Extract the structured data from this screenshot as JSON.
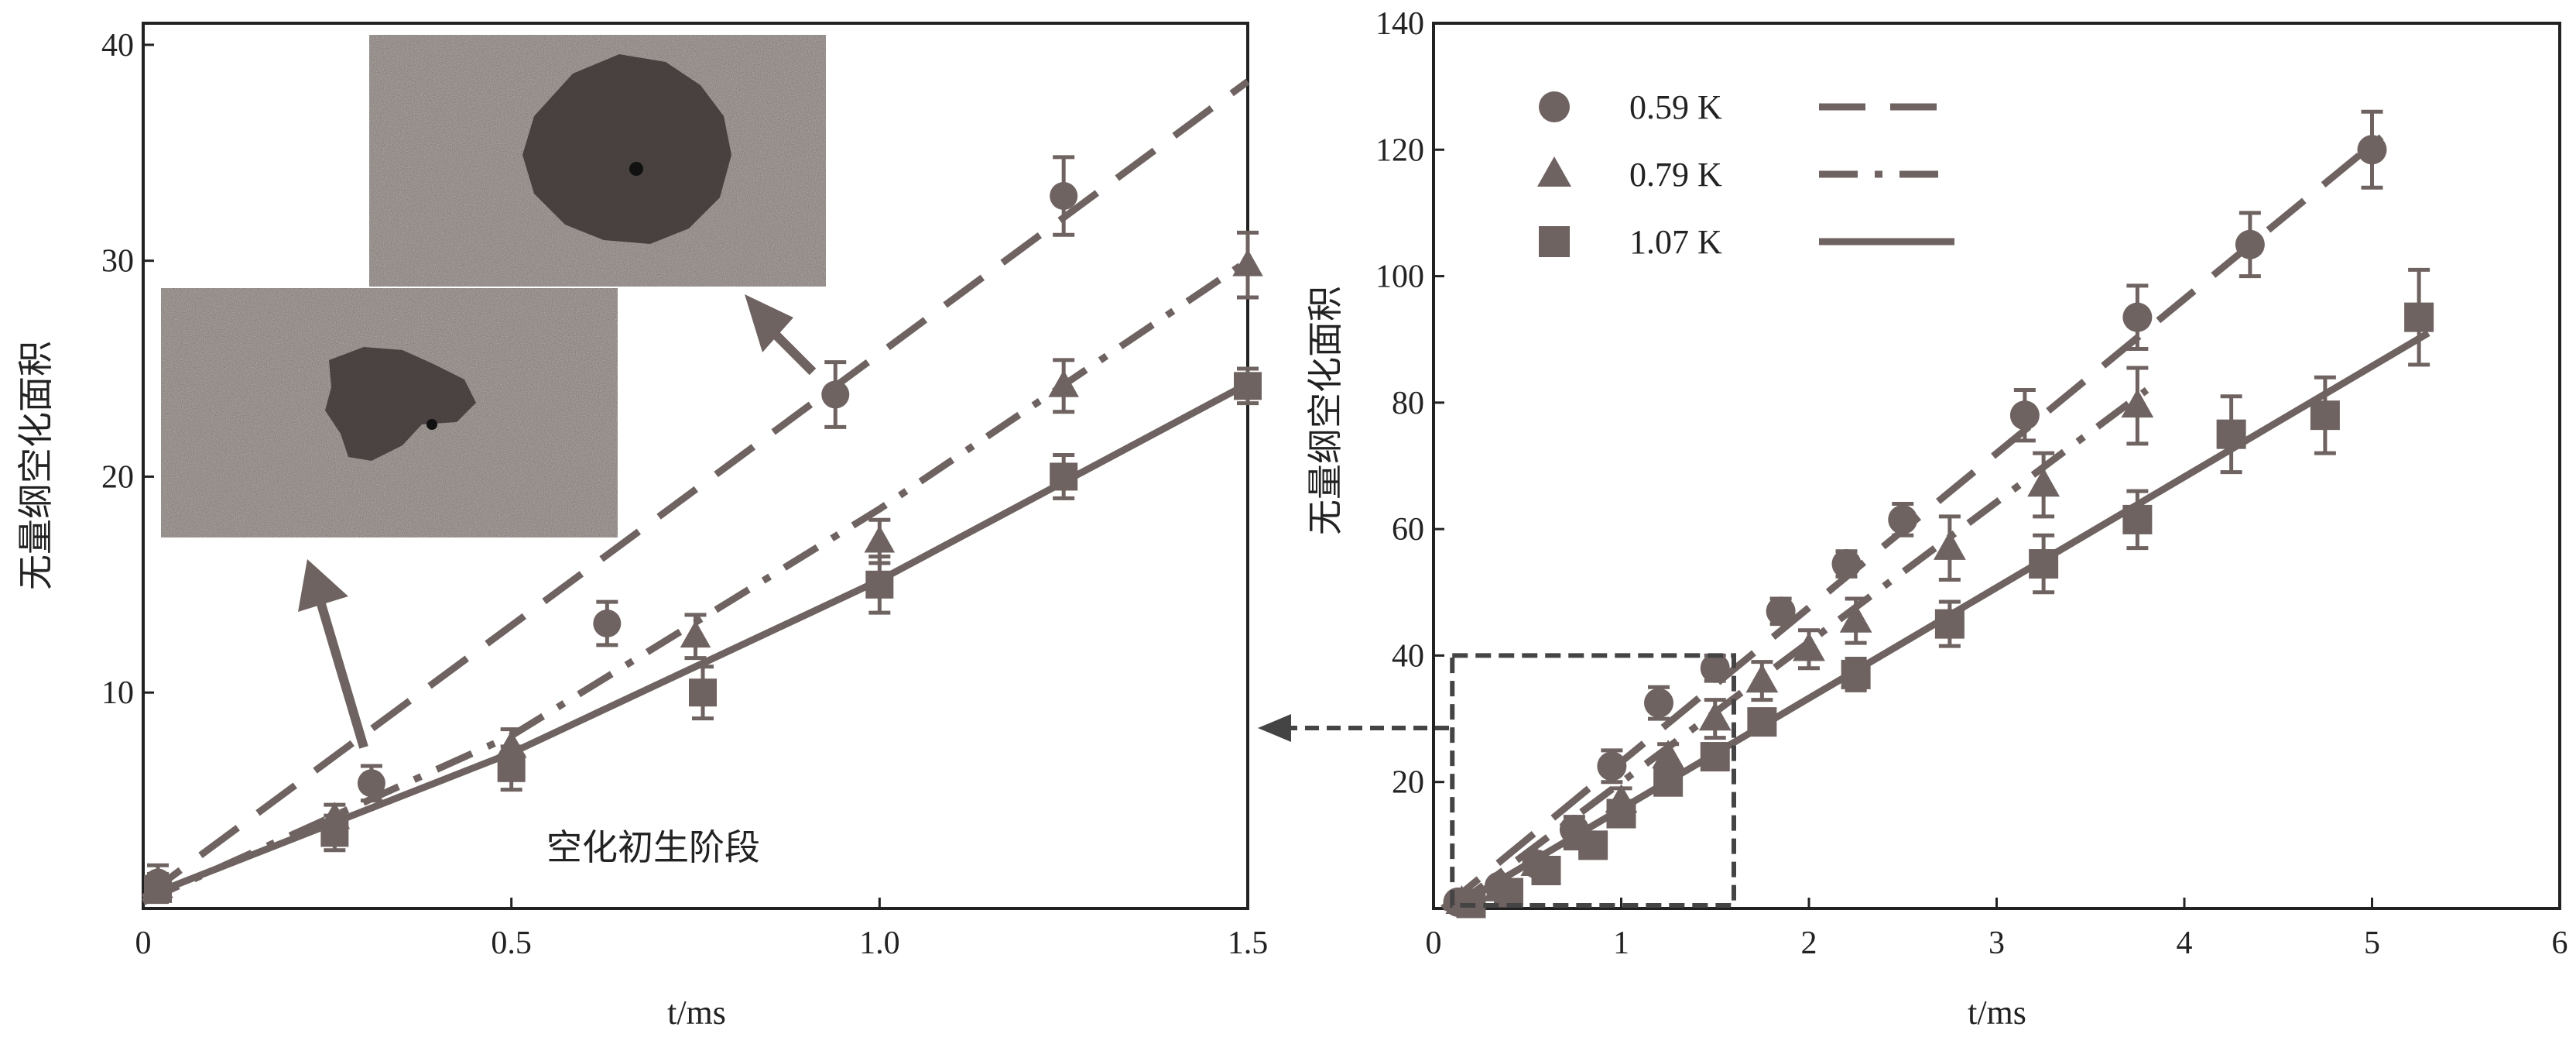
{
  "chart_data": [
    {
      "type": "scatter",
      "panel": "left",
      "title": "",
      "xlabel": "t/ms",
      "ylabel": "无量纲空化面积",
      "xlim": [
        0,
        1.5
      ],
      "ylim": [
        0,
        41
      ],
      "xticks": [
        "0",
        "0.5",
        "1.0",
        "1.5"
      ],
      "yticks": [
        "10",
        "20",
        "30",
        "40"
      ],
      "annotation": "空化初生阶段",
      "series": [
        {
          "name": "0.59 K",
          "marker": "circle",
          "x": [
            0.02,
            0.31,
            0.63,
            0.94,
            1.25
          ],
          "y": [
            1.2,
            5.8,
            13.2,
            23.8,
            33.0
          ],
          "err": [
            0.8,
            0.8,
            1.0,
            1.5,
            1.8
          ],
          "fit": {
            "style": "dashed",
            "x": [
              0,
              1.5
            ],
            "y": [
              0.5,
              38.3
            ]
          }
        },
        {
          "name": "0.79 K",
          "marker": "triangle",
          "x": [
            0.02,
            0.26,
            0.5,
            0.75,
            1.0,
            1.25,
            1.5
          ],
          "y": [
            1.0,
            4.2,
            7.5,
            12.6,
            17.0,
            24.2,
            29.8
          ],
          "err": [
            0.6,
            0.6,
            0.8,
            1.0,
            1.0,
            1.2,
            1.5
          ],
          "fit": {
            "style": "dashdot",
            "x": [
              0,
              0.5,
              1.0,
              1.5
            ],
            "y": [
              0.3,
              8.0,
              18.5,
              30.0
            ]
          }
        },
        {
          "name": "1.07 K",
          "marker": "square",
          "x": [
            0.02,
            0.26,
            0.5,
            0.76,
            1.0,
            1.25,
            1.5
          ],
          "y": [
            0.9,
            3.5,
            6.5,
            10.0,
            15.0,
            20.0,
            24.2
          ],
          "err": [
            0.6,
            0.8,
            1.0,
            1.2,
            1.3,
            1.0,
            0.8
          ],
          "fit": {
            "style": "solid",
            "x": [
              0,
              0.5,
              1.0,
              1.5
            ],
            "y": [
              0.5,
              7.2,
              15.2,
              24.3
            ]
          }
        }
      ]
    },
    {
      "type": "scatter",
      "panel": "right",
      "title": "",
      "xlabel": "t/ms",
      "ylabel": "无量纲空化面积",
      "xlim": [
        0,
        6
      ],
      "ylim": [
        0,
        140
      ],
      "xticks": [
        "0",
        "1",
        "2",
        "3",
        "4",
        "5",
        "6"
      ],
      "yticks": [
        "20",
        "40",
        "60",
        "80",
        "100",
        "120",
        "140"
      ],
      "legend": {
        "position": "top-left",
        "entries": [
          "0.59 K",
          "0.79 K",
          "1.07 K"
        ]
      },
      "zoom_box": {
        "xlim": [
          0.1,
          1.6
        ],
        "ylim": [
          0,
          40
        ]
      },
      "series": [
        {
          "name": "0.59 K",
          "marker": "circle",
          "x": [
            0.13,
            0.35,
            0.55,
            0.75,
            0.95,
            1.2,
            1.5,
            1.85,
            2.2,
            2.5,
            3.15,
            3.75,
            4.35,
            5.0
          ],
          "y": [
            1.0,
            3.5,
            7.0,
            12.5,
            22.5,
            32.5,
            38.0,
            47.0,
            54.5,
            61.5,
            78.0,
            93.5,
            105.0,
            120.0
          ],
          "err": [
            1,
            1,
            1.5,
            2,
            2.5,
            2.5,
            2,
            2,
            2,
            2.5,
            4,
            5,
            5,
            6
          ],
          "fit": {
            "style": "dashed",
            "x": [
              0.05,
              5.05
            ],
            "y": [
              0,
              122
            ]
          }
        },
        {
          "name": "0.79 K",
          "marker": "triangle",
          "x": [
            0.15,
            0.35,
            0.55,
            0.75,
            1.0,
            1.25,
            1.5,
            1.75,
            2.0,
            2.25,
            2.75,
            3.25,
            3.75
          ],
          "y": [
            1.0,
            3.0,
            7.0,
            11.5,
            17.0,
            24.0,
            30.0,
            36.0,
            41.0,
            45.5,
            57.0,
            67.0,
            79.5
          ],
          "err": [
            1,
            1,
            1.5,
            2,
            2,
            2,
            3,
            3,
            3,
            3.5,
            5,
            5,
            6
          ],
          "fit": {
            "style": "dashdot",
            "x": [
              0.1,
              3.8
            ],
            "y": [
              0,
              82
            ]
          }
        },
        {
          "name": "1.07 K",
          "marker": "square",
          "x": [
            0.2,
            0.4,
            0.6,
            0.85,
            1.0,
            1.25,
            1.5,
            1.75,
            2.25,
            2.75,
            3.25,
            3.75,
            4.25,
            4.75,
            5.25
          ],
          "y": [
            0.8,
            2.5,
            6.0,
            10.0,
            15.0,
            20.0,
            24.0,
            29.5,
            37.0,
            45.0,
            54.5,
            61.5,
            75.0,
            78.0,
            93.5
          ],
          "err": [
            1,
            1,
            1.5,
            1.5,
            2,
            2,
            2,
            2,
            2.5,
            3.5,
            4.5,
            4.5,
            6,
            6,
            7.5
          ],
          "fit": {
            "style": "solid",
            "x": [
              0.1,
              5.3
            ],
            "y": [
              0,
              91
            ]
          }
        }
      ]
    }
  ]
}
